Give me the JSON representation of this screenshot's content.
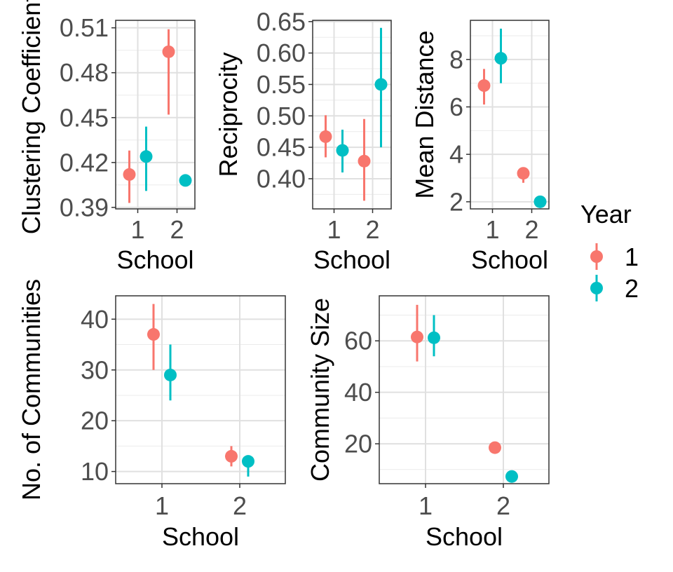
{
  "colors": {
    "year_1": "#F8766D",
    "year_2": "#00BFC4"
  },
  "legend": {
    "title": "Year",
    "items": [
      {
        "label": "1",
        "color": "#F8766D"
      },
      {
        "label": "2",
        "color": "#00BFC4"
      }
    ]
  },
  "chart_data": [
    {
      "type": "scatter",
      "ylabel": "Clustering Coefficient",
      "xlabel": "School",
      "x_ticks": [
        "1",
        "2"
      ],
      "y_ticks": [
        "0.39",
        "0.42",
        "0.45",
        "0.48",
        "0.51"
      ],
      "ylim": [
        0.389,
        0.515
      ],
      "grid": true,
      "series": [
        {
          "name": "1",
          "points": [
            {
              "school": 1,
              "y": 0.412,
              "lo": 0.393,
              "hi": 0.428
            },
            {
              "school": 2,
              "y": 0.494,
              "lo": 0.452,
              "hi": 0.509
            }
          ]
        },
        {
          "name": "2",
          "points": [
            {
              "school": 1,
              "y": 0.424,
              "lo": 0.401,
              "hi": 0.444
            },
            {
              "school": 2,
              "y": 0.408,
              "lo": 0.408,
              "hi": 0.408
            }
          ]
        }
      ]
    },
    {
      "type": "scatter",
      "ylabel": "Reciprocity",
      "xlabel": "School",
      "x_ticks": [
        "1",
        "2"
      ],
      "y_ticks": [
        "0.40",
        "0.45",
        "0.50",
        "0.55",
        "0.60",
        "0.65"
      ],
      "ylim": [
        0.352,
        0.652
      ],
      "grid": true,
      "series": [
        {
          "name": "1",
          "points": [
            {
              "school": 1,
              "y": 0.467,
              "lo": 0.434,
              "hi": 0.501
            },
            {
              "school": 2,
              "y": 0.428,
              "lo": 0.365,
              "hi": 0.495
            }
          ]
        },
        {
          "name": "2",
          "points": [
            {
              "school": 1,
              "y": 0.445,
              "lo": 0.41,
              "hi": 0.478
            },
            {
              "school": 2,
              "y": 0.55,
              "lo": 0.45,
              "hi": 0.64
            }
          ]
        }
      ]
    },
    {
      "type": "scatter",
      "ylabel": "Mean Distance",
      "xlabel": "School",
      "x_ticks": [
        "1",
        "2"
      ],
      "y_ticks": [
        "2",
        "4",
        "6",
        "8"
      ],
      "ylim": [
        1.7,
        9.65
      ],
      "grid": true,
      "series": [
        {
          "name": "1",
          "points": [
            {
              "school": 1,
              "y": 6.9,
              "lo": 6.1,
              "hi": 7.6
            },
            {
              "school": 2,
              "y": 3.2,
              "lo": 2.8,
              "hi": 3.4
            }
          ]
        },
        {
          "name": "2",
          "points": [
            {
              "school": 1,
              "y": 8.05,
              "lo": 7.0,
              "hi": 9.3
            },
            {
              "school": 2,
              "y": 2.0,
              "lo": 2.0,
              "hi": 2.0
            }
          ]
        }
      ]
    },
    {
      "type": "scatter",
      "ylabel": "No. of Communities",
      "xlabel": "School",
      "x_ticks": [
        "1",
        "2"
      ],
      "y_ticks": [
        "10",
        "20",
        "30",
        "40"
      ],
      "ylim": [
        7.6,
        44.6
      ],
      "grid": true,
      "series": [
        {
          "name": "1",
          "points": [
            {
              "school": 1,
              "y": 37,
              "lo": 30,
              "hi": 43
            },
            {
              "school": 2,
              "y": 13,
              "lo": 11,
              "hi": 15
            }
          ]
        },
        {
          "name": "2",
          "points": [
            {
              "school": 1,
              "y": 29,
              "lo": 24,
              "hi": 35
            },
            {
              "school": 2,
              "y": 12,
              "lo": 9,
              "hi": 12
            }
          ]
        }
      ]
    },
    {
      "type": "scatter",
      "ylabel": "Community Size",
      "xlabel": "School",
      "x_ticks": [
        "1",
        "2"
      ],
      "y_ticks": [
        "20",
        "40",
        "60"
      ],
      "ylim": [
        4.5,
        77.5
      ],
      "grid": true,
      "series": [
        {
          "name": "1",
          "points": [
            {
              "school": 1,
              "y": 61.5,
              "lo": 52,
              "hi": 74
            },
            {
              "school": 2,
              "y": 18.5,
              "lo": 18.5,
              "hi": 18.5
            }
          ]
        },
        {
          "name": "2",
          "points": [
            {
              "school": 1,
              "y": 61.2,
              "lo": 54,
              "hi": 70
            },
            {
              "school": 2,
              "y": 7.3,
              "lo": 7.3,
              "hi": 7.3
            }
          ]
        }
      ]
    }
  ]
}
